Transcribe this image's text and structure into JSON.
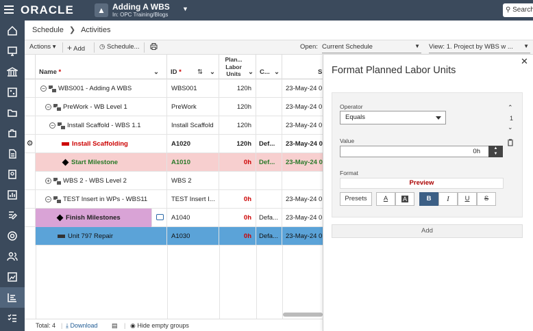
{
  "header": {
    "brand": "ORACLE",
    "project_title": "Adding A WBS",
    "project_subtitle": "In: OPC Training/Blogs",
    "search_label": "Search"
  },
  "breadcrumb": [
    "Schedule",
    "Activities"
  ],
  "toolbar": {
    "actions_label": "Actions",
    "add_label": "Add",
    "schedule_label": "Schedule...",
    "open_label": "Open:",
    "open_value": "Current Schedule",
    "view_label": "View: 1. Project by WBS w ..."
  },
  "grid": {
    "columns": {
      "name": "Name",
      "id": "ID",
      "planned": [
        "Plan...",
        "Labor",
        "Units"
      ],
      "cal": "C...",
      "start": "S"
    },
    "rows": [
      {
        "name": "WBS001 - Adding A WBS",
        "id": "WBS001",
        "units": "120h",
        "cal": "",
        "start": "23-May-24 0"
      },
      {
        "name": "PreWork - WB Level 1",
        "id": "PreWork",
        "units": "120h",
        "cal": "",
        "start": "23-May-24 0"
      },
      {
        "name": "Install Scaffold - WBS 1.1",
        "id": "Install Scaffold",
        "units": "120h",
        "cal": "",
        "start": "23-May-24 0"
      },
      {
        "name": "Install Scaffolding",
        "id": "A1020",
        "units": "120h",
        "cal": "Def...",
        "start": "23-May-24 0"
      },
      {
        "name": "Start Milestone",
        "id": "A1010",
        "units": "0h",
        "cal": "Def...",
        "start": "23-May-24 0"
      },
      {
        "name": "WBS 2 - WBS Level 2",
        "id": "WBS 2",
        "units": "",
        "cal": "",
        "start": ""
      },
      {
        "name": "TEST Insert in WPs - WBS11",
        "id": "TEST Insert I...",
        "units": "0h",
        "cal": "",
        "start": "23-May-24 0"
      },
      {
        "name": "Finish Milestones",
        "id": "A1040",
        "units": "0h",
        "cal": "Defa...",
        "start": "23-May-24 0"
      },
      {
        "name": "Unit 797 Repair",
        "id": "A1030",
        "units": "0h",
        "cal": "Defa...",
        "start": "23-May-24 0"
      }
    ]
  },
  "footer": {
    "total": "Total: 4",
    "download": "Download",
    "hide_empty": "Hide empty groups"
  },
  "panel": {
    "title": "Format Planned Labor Units",
    "operator_label": "Operator",
    "operator_value": "Equals",
    "value_label": "Value",
    "value": "0h",
    "format_label": "Format",
    "preview": "Preview",
    "presets": "Presets",
    "rule_index": "1",
    "add_button": "Add"
  },
  "colors": {
    "nav_bg": "#3b4a5c",
    "highlight_pink": "#f7cfcf",
    "highlight_purple": "#d9a3d6",
    "highlight_blue": "#5ba3d8",
    "bold_active": "#3c5f85"
  }
}
